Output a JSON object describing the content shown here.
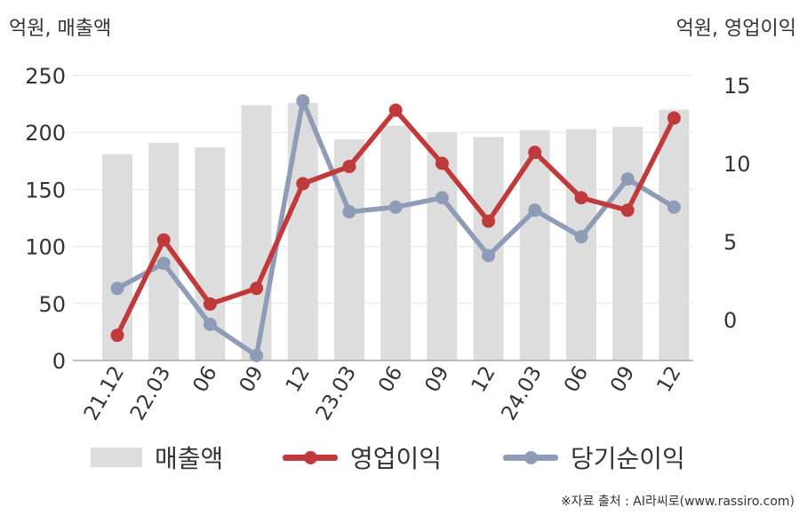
{
  "chart_data": {
    "type": "bar+line",
    "categories": [
      "21.12",
      "22.03",
      "06",
      "09",
      "12",
      "23.03",
      "06",
      "09",
      "12",
      "24.03",
      "06",
      "09",
      "12"
    ],
    "left_axis": {
      "unit_label": "억원, 매출액",
      "ylim": [
        0,
        250
      ],
      "ticks": [
        "0",
        "50",
        "100",
        "150",
        "200",
        "250"
      ]
    },
    "right_axis": {
      "unit_label": "억원, 영업이익",
      "ylim": [
        -2.5,
        15
      ],
      "ticks": [
        "0",
        "5",
        "10",
        "15"
      ]
    },
    "series": [
      {
        "name": "매출액",
        "type": "bar",
        "axis": "left",
        "color": "#dddddd",
        "values": [
          181,
          191,
          187,
          224,
          226,
          194,
          206,
          200,
          196,
          202,
          203,
          205,
          220
        ]
      },
      {
        "name": "영업이익",
        "type": "line",
        "axis": "right",
        "color": "#c0393b",
        "values": [
          -1.0,
          5.1,
          1.0,
          2.0,
          8.7,
          9.8,
          13.4,
          10.0,
          6.3,
          10.7,
          7.8,
          7.0,
          12.9
        ]
      },
      {
        "name": "당기순이익",
        "type": "line",
        "axis": "right",
        "color": "#8e9cb8",
        "values": [
          2.0,
          3.6,
          -0.3,
          -2.3,
          14.0,
          6.9,
          7.2,
          7.8,
          4.1,
          7.0,
          5.3,
          9.0,
          7.2
        ]
      }
    ],
    "grid": true,
    "legend_position": "bottom"
  },
  "source_text": "※자료 출처 : AI라씨로(www.rassiro.com)"
}
